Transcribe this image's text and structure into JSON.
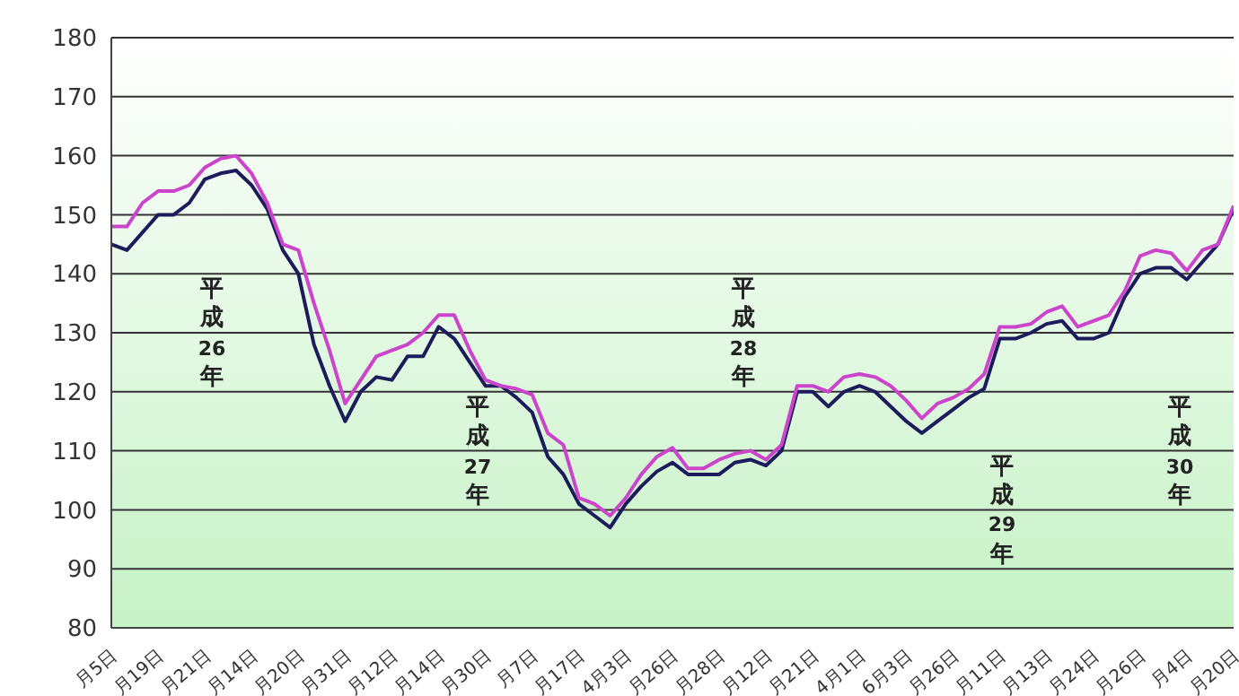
{
  "chart_data": {
    "type": "line",
    "ylim": [
      80,
      180
    ],
    "yticks": [
      80,
      90,
      100,
      110,
      120,
      130,
      140,
      150,
      160,
      170,
      180
    ],
    "categories": [
      "月5日",
      null,
      null,
      "月19日",
      null,
      null,
      "月21日",
      null,
      null,
      "月14日",
      null,
      null,
      "月20日",
      null,
      null,
      "月31日",
      null,
      null,
      "月12日",
      null,
      null,
      "月14日",
      null,
      null,
      "月30日",
      null,
      null,
      "月7日",
      null,
      null,
      "月17日",
      null,
      null,
      "4月3日",
      null,
      null,
      "月26日",
      null,
      null,
      "月28日",
      null,
      null,
      "月12日",
      null,
      null,
      "月21日",
      null,
      null,
      "4月1日",
      null,
      null,
      "6月3日",
      null,
      null,
      "月26日",
      null,
      null,
      "月11日",
      null,
      null,
      "月13日",
      null,
      null,
      "月24日",
      null,
      null,
      "月26日",
      null,
      null,
      "月4日",
      null,
      null,
      "月20日"
    ],
    "grid": "y",
    "annotations": [
      "平成26年",
      "平成27年",
      "平成28年",
      "平成29年",
      "平成30年"
    ],
    "series": [
      {
        "color": "#1c1c5c",
        "values": [
          145,
          144,
          147,
          150,
          150,
          152,
          156,
          157,
          157.5,
          155,
          151,
          144,
          140,
          128,
          121,
          115,
          120,
          122.5,
          122,
          126,
          126,
          131,
          129,
          125,
          121,
          121,
          119,
          116.5,
          109,
          106,
          101,
          99,
          97,
          101,
          104,
          106.5,
          108,
          106,
          106,
          106,
          108,
          108.5,
          107.5,
          110,
          120,
          120,
          117.5,
          120,
          121,
          120,
          117.5,
          115,
          113,
          115,
          117,
          119,
          120.5,
          129,
          129,
          130,
          131.5,
          132,
          129,
          129,
          130,
          136,
          140,
          141,
          141,
          139,
          142,
          145,
          151
        ]
      },
      {
        "color": "#cc44cc",
        "values": [
          148,
          148,
          152,
          154,
          154,
          155,
          158,
          159.5,
          160,
          157,
          152,
          145,
          144,
          135,
          127,
          118,
          122,
          126,
          127,
          128,
          130,
          133,
          133,
          127,
          122,
          121,
          120.5,
          119.5,
          113,
          111,
          102,
          101,
          99,
          102,
          106,
          109,
          110.5,
          107,
          107,
          108.5,
          109.5,
          110,
          108.5,
          111,
          121,
          121,
          120,
          122.5,
          123,
          122.5,
          121,
          118.5,
          115.5,
          118,
          119,
          120.5,
          123,
          131,
          131,
          131.5,
          133.5,
          134.5,
          131,
          132,
          133,
          137,
          143,
          144,
          143.5,
          140.5,
          144,
          145,
          151.5
        ]
      }
    ]
  }
}
